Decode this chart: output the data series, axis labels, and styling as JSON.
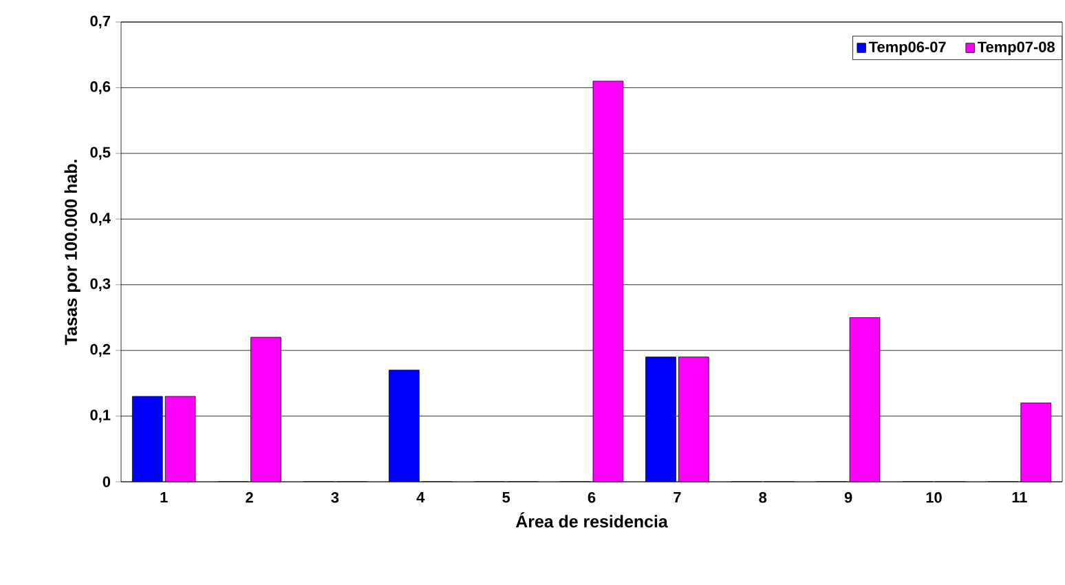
{
  "chart_data": {
    "type": "bar",
    "xlabel": "Área de residencia",
    "ylabel": "Tasas por 100.000 hab.",
    "categories": [
      "1",
      "2",
      "3",
      "4",
      "5",
      "6",
      "7",
      "8",
      "9",
      "10",
      "11"
    ],
    "series": [
      {
        "name": "Temp06-07",
        "color": "#0000ff",
        "values": [
          0.13,
          0,
          0,
          0.17,
          0,
          0,
          0.19,
          0,
          0,
          0,
          0
        ]
      },
      {
        "name": "Temp07-08",
        "color": "#ff00ff",
        "values": [
          0.13,
          0.22,
          0,
          0,
          0,
          0.61,
          0.19,
          0,
          0.25,
          0,
          0.12
        ]
      }
    ],
    "ylim": [
      0,
      0.7
    ],
    "yticks": [
      {
        "value": 0,
        "label": "0"
      },
      {
        "value": 0.1,
        "label": "0,1"
      },
      {
        "value": 0.2,
        "label": "0,2"
      },
      {
        "value": 0.3,
        "label": "0,3"
      },
      {
        "value": 0.4,
        "label": "0,4"
      },
      {
        "value": 0.5,
        "label": "0,5"
      },
      {
        "value": 0.6,
        "label": "0,6"
      },
      {
        "value": 0.7,
        "label": "0,7"
      }
    ],
    "grid": "y",
    "legend": "top right"
  }
}
